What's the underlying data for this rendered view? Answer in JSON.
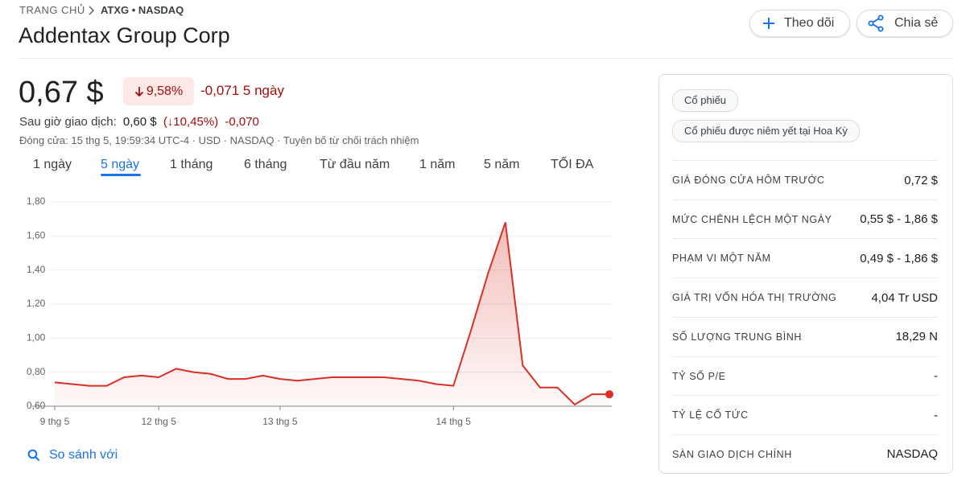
{
  "breadcrumb": {
    "home": "TRANG CHỦ",
    "ticker": "ATXG • NASDAQ"
  },
  "header": {
    "title": "Addentax Group Corp",
    "follow": "Theo dõi",
    "share": "Chia sẻ"
  },
  "quote": {
    "price": "0,67 $",
    "change_pct": "9,58%",
    "change": "-0,071 5 ngày",
    "after_hours_label": "Sau giờ giao dịch:",
    "after_hours_price": "0,60 $",
    "after_hours_pct": "(↓10,45%)",
    "after_hours_change": "-0,070",
    "close_info": "Đóng cửa: 15 thg 5, 19:59:34 UTC-4 · USD · NASDAQ · Tuyên bố từ chối trách nhiệm"
  },
  "tabs": {
    "items": [
      "1 ngày",
      "5 ngày",
      "1 tháng",
      "6 tháng",
      "Từ đầu năm",
      "1 năm",
      "5 năm",
      "TỐI ĐA"
    ],
    "selected": 1
  },
  "chart_data": {
    "type": "line",
    "color": "#d93025",
    "grid": true,
    "categories": [
      "9 thg 5",
      null,
      null,
      null,
      null,
      null,
      "12 thg 5",
      null,
      null,
      null,
      null,
      null,
      null,
      "13 thg 5",
      null,
      null,
      null,
      null,
      null,
      null,
      null,
      null,
      null,
      "14 thg 5",
      null,
      null,
      null,
      null,
      null,
      null,
      null,
      null,
      null
    ],
    "values": [
      0.74,
      0.73,
      0.72,
      0.72,
      0.77,
      0.78,
      0.77,
      0.82,
      0.8,
      0.79,
      0.76,
      0.76,
      0.78,
      0.76,
      0.75,
      0.76,
      0.77,
      0.77,
      0.77,
      0.77,
      0.76,
      0.75,
      0.73,
      0.72,
      1.04,
      1.38,
      1.68,
      0.84,
      0.71,
      0.71,
      0.61,
      0.67,
      0.67
    ],
    "ylim": [
      0.6,
      1.8
    ],
    "yticks": [
      {
        "value": 0.6,
        "label": "0,60"
      },
      {
        "value": 0.8,
        "label": "0,80"
      },
      {
        "value": 1.0,
        "label": "1,00"
      },
      {
        "value": 1.2,
        "label": "1,20"
      },
      {
        "value": 1.4,
        "label": "1,40"
      },
      {
        "value": 1.6,
        "label": "1,60"
      },
      {
        "value": 1.8,
        "label": "1,80"
      }
    ]
  },
  "compare": "So sánh với",
  "tags": [
    "Cổ phiếu",
    "Cổ phiếu được niêm yết tại Hoa Kỳ"
  ],
  "stats": [
    [
      "GIÁ ĐÓNG CỬA HÔM TRƯỚC",
      "0,72 $"
    ],
    [
      "MỨC CHÊNH LỆCH MỘT NGÀY",
      "0,55 $ - 1,86 $"
    ],
    [
      "PHẠM VI MỘT NĂM",
      "0,49 $ - 1,86 $"
    ],
    [
      "GIÁ TRỊ VỐN HÓA THỊ TRƯỜNG",
      "4,04 Tr USD"
    ],
    [
      "SỐ LƯỢNG TRUNG BÌNH",
      "18,29 N"
    ],
    [
      "TỶ SỐ P/E",
      "-"
    ],
    [
      "TỶ LỆ CỔ TỨC",
      "-"
    ],
    [
      "SÀN GIAO DỊCH CHÍNH",
      "NASDAQ"
    ]
  ]
}
